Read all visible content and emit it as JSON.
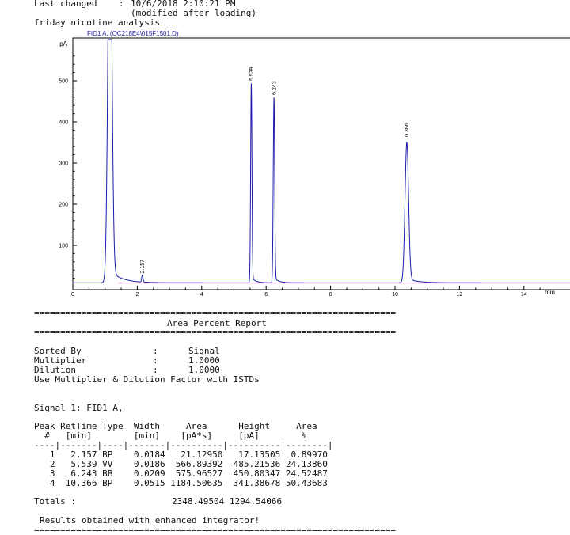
{
  "header": {
    "last_changed_label": "Last changed",
    "last_changed_sep": ":",
    "last_changed_value": "10/6/2018 2:10:21 PM",
    "modified_note": "(modified after loading)",
    "method_name": "friday nicotine analysis"
  },
  "chart_data": {
    "type": "line",
    "signal_label": "FID1 A, (OC218E4\\015F1501.D)",
    "ylabel": "pA",
    "xlabel": "min",
    "xlim": [
      0,
      15
    ],
    "ylim": [
      0,
      580
    ],
    "x_ticks": [
      0,
      2,
      4,
      6,
      8,
      10,
      12,
      14
    ],
    "y_ticks": [
      100,
      200,
      300,
      400,
      500
    ],
    "baseline": 9,
    "peaks": [
      {
        "rt": 1.15,
        "height": 1000,
        "width": 0.06,
        "label": ""
      },
      {
        "rt": 2.157,
        "height": 17.1,
        "width": 0.02,
        "label": "2.157"
      },
      {
        "rt": 5.539,
        "height": 485.2,
        "width": 0.02,
        "label": "5.539"
      },
      {
        "rt": 6.243,
        "height": 450.8,
        "width": 0.022,
        "label": "6.243"
      },
      {
        "rt": 10.366,
        "height": 341.4,
        "width": 0.055,
        "label": "10.366"
      }
    ]
  },
  "report": {
    "separator": "=====================================================================",
    "title": "Area Percent Report",
    "sorted_by_label": "Sorted By",
    "sorted_by_value": "Signal",
    "multiplier_label": "Multiplier",
    "multiplier_value": "1.0000",
    "dilution_label": "Dilution",
    "dilution_value": "1.0000",
    "istd_note": "Use Multiplier & Dilution Factor with ISTDs",
    "signal_line": "Signal 1: FID1 A,",
    "col_header_1": "Peak RetTime Type  Width     Area      Height     Area",
    "col_header_2": "  #   [min]        [min]    [pA*s]     [pA]        %",
    "col_divider": "----|-------|----|-------|----------|----------|--------|",
    "rows": [
      "   1   2.157 BP    0.0184   21.12950   17.13505  0.89970",
      "   2   5.539 VV    0.0186  566.89392  485.21536 24.13860",
      "   3   6.243 BB    0.0209  575.96527  450.80347 24.52487",
      "   4  10.366 BP    0.0515 1184.50635  341.38678 50.43683"
    ],
    "totals_label": "Totals :",
    "totals_values": "2348.49504 1294.54066",
    "footer": "Results obtained with enhanced integrator!"
  }
}
